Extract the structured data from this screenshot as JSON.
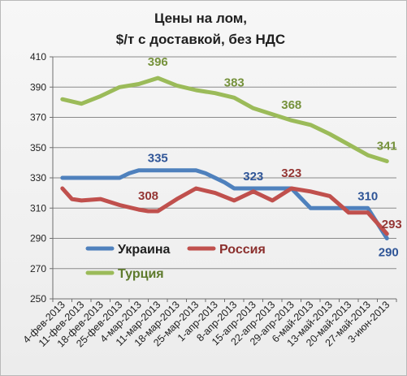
{
  "chart_data": {
    "type": "line",
    "title_lines": [
      "Цены на лом,",
      "$/т  с доставкой, без  НДС"
    ],
    "xlabel": "",
    "ylabel": "",
    "ylim": [
      250,
      410
    ],
    "y_ticks": [
      "250",
      "270",
      "290",
      "310",
      "330",
      "350",
      "370",
      "390",
      "410"
    ],
    "grid": true,
    "legend_position": "lower-left",
    "categories": [
      "4-фев-2013",
      "11-фев-2013",
      "18-фев-2013",
      "25-фев-2013",
      "4-мар-2013",
      "11-мар-2013",
      "18-мар-2013",
      "25-мар-2013",
      "1-апр-2013",
      "8-апр-2013",
      "15-апр-2013",
      "22-апр-2013",
      "29-апр-2013",
      "6-май-2013",
      "13-май-2013",
      "20-май-2013",
      "27-май-2013",
      "3-июн-2013"
    ],
    "series": [
      {
        "name": "Украина",
        "color": "#4f81bd",
        "x": [
          0,
          1,
          2,
          3,
          3.5,
          4,
          5,
          6,
          7,
          7.5,
          8,
          8.5,
          9,
          10,
          11,
          12,
          13,
          14,
          15,
          16,
          17
        ],
        "values": [
          330,
          330,
          330,
          330,
          333,
          335,
          335,
          335,
          335,
          333,
          330,
          327,
          323,
          323,
          323,
          323,
          310,
          310,
          310,
          310,
          290
        ],
        "labels": [
          {
            "index": 6,
            "text": "335",
            "color": "#2f5597"
          },
          {
            "index": 13,
            "text": "323",
            "color": "#2f5597"
          },
          {
            "index": 19,
            "text": "310",
            "color": "#2f5597"
          },
          {
            "index": 20,
            "text": "290",
            "color": "#2f5597"
          }
        ]
      },
      {
        "name": "Россия",
        "color": "#c0504d",
        "x": [
          0,
          0.5,
          1,
          2,
          3,
          4,
          4.5,
          5,
          6,
          7,
          8,
          9,
          10,
          11,
          12,
          13,
          14,
          15,
          16,
          17
        ],
        "values": [
          323,
          316,
          315,
          316,
          312,
          309,
          308,
          308,
          316,
          323,
          320,
          315,
          321,
          315,
          323,
          321,
          318,
          307,
          307,
          293
        ],
        "labels": [
          {
            "index": 6,
            "text": "308",
            "color": "#953735"
          },
          {
            "index": 14,
            "text": "323",
            "color": "#953735"
          },
          {
            "index": 19,
            "text": "293",
            "color": "#953735"
          }
        ]
      },
      {
        "name": "Турция",
        "color": "#9bbb59",
        "x": [
          0,
          1,
          2,
          3,
          4,
          5,
          6,
          7,
          8,
          9,
          10,
          11,
          12,
          13,
          14,
          15,
          16,
          17
        ],
        "values": [
          382,
          379,
          384,
          390,
          392,
          396,
          391,
          388,
          386,
          383,
          376,
          372,
          368,
          365,
          359,
          352,
          345,
          341
        ],
        "labels": [
          {
            "index": 5,
            "text": "396",
            "color": "#76923c"
          },
          {
            "index": 9,
            "text": "383",
            "color": "#76923c"
          },
          {
            "index": 12,
            "text": "368",
            "color": "#76923c"
          },
          {
            "index": 17,
            "text": "341",
            "color": "#76923c"
          }
        ]
      }
    ]
  }
}
